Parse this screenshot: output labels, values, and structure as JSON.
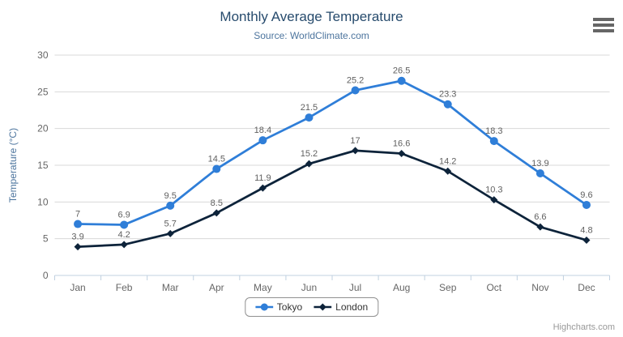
{
  "chart": {
    "title": "Monthly Average Temperature",
    "subtitle": "Source: WorldClimate.com",
    "credits": "Highcharts.com"
  },
  "chart_data": {
    "type": "line",
    "title": "Monthly Average Temperature",
    "subtitle": "Source: WorldClimate.com",
    "categories": [
      "Jan",
      "Feb",
      "Mar",
      "Apr",
      "May",
      "Jun",
      "Jul",
      "Aug",
      "Sep",
      "Oct",
      "Nov",
      "Dec"
    ],
    "series": [
      {
        "name": "Tokyo",
        "marker": "circle",
        "color": "#2f7ed8",
        "values": [
          7,
          6.9,
          9.5,
          14.5,
          18.4,
          21.5,
          25.2,
          26.5,
          23.3,
          18.3,
          13.9,
          9.6
        ]
      },
      {
        "name": "London",
        "marker": "diamond",
        "color": "#0d233a",
        "values": [
          3.9,
          4.2,
          5.7,
          8.5,
          11.9,
          15.2,
          17,
          16.6,
          14.2,
          10.3,
          6.6,
          4.8
        ]
      }
    ],
    "xlabel": "",
    "ylabel": "Temperature (°C)",
    "ylim": [
      0,
      30
    ],
    "ytick_interval": 5,
    "grid": true,
    "data_labels": true,
    "legend_position": "bottom"
  },
  "colors": {
    "title": "#274b6d",
    "subtitle": "#4d759e",
    "gridline": "#d8d8d8",
    "axis_line": "#c0d0e0",
    "axis_label": "#666666",
    "data_label": "#606060",
    "legend_text": "#333333",
    "credits_text": "#999999"
  },
  "icons": {
    "context_menu": "hamburger-menu-icon"
  }
}
